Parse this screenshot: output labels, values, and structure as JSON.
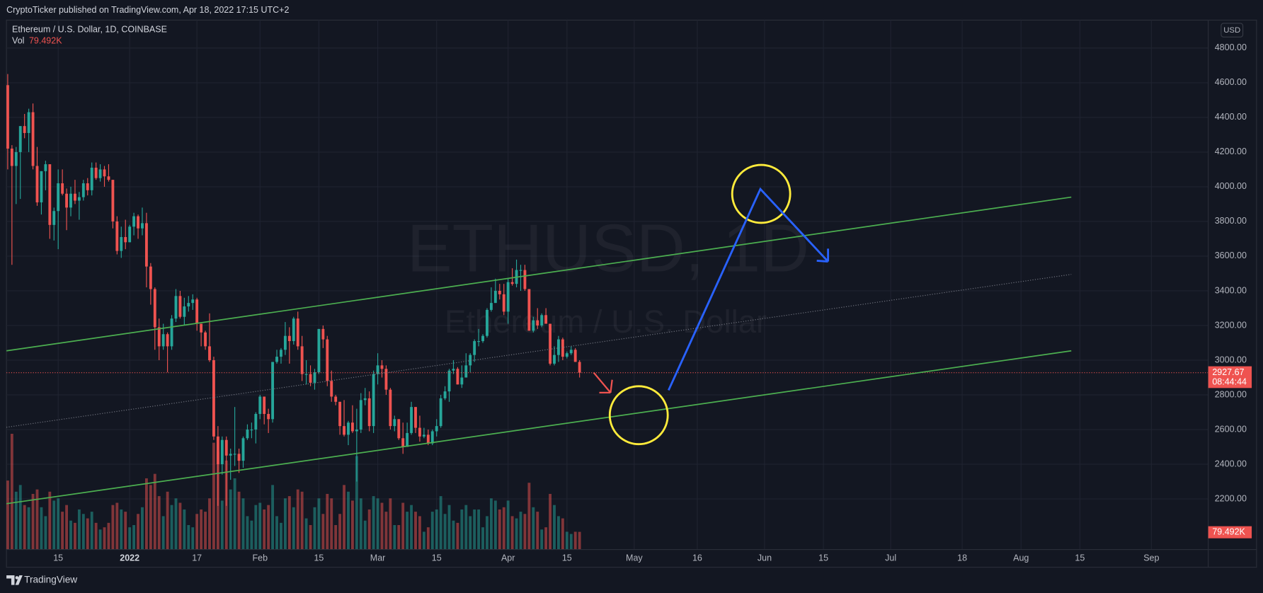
{
  "header": "CryptoTicker published on TradingView.com, Apr 18, 2022 17:15 UTC+2",
  "footer": "TradingView",
  "chart_data": {
    "type": "candlestick",
    "symbol": "Ethereum / U.S. Dollar, 1D, COINBASE",
    "watermark": "ETHUSD, 1D",
    "watermark_subtitle": "Ethereum / U.S. Dollar",
    "currency": "USD",
    "up_color": "#26a69a",
    "down_color": "#ef5350",
    "x": [
      "2021-12-03",
      "2021-12-04",
      "2021-12-05",
      "2021-12-06",
      "2021-12-07",
      "2021-12-08",
      "2021-12-09",
      "2021-12-10",
      "2021-12-11",
      "2021-12-12",
      "2021-12-13",
      "2021-12-14",
      "2021-12-15",
      "2021-12-16",
      "2021-12-17",
      "2021-12-18",
      "2021-12-19",
      "2021-12-20",
      "2021-12-21",
      "2021-12-22",
      "2021-12-23",
      "2021-12-24",
      "2021-12-25",
      "2021-12-26",
      "2021-12-27",
      "2021-12-28",
      "2021-12-29",
      "2021-12-30",
      "2021-12-31",
      "2022-01-01",
      "2022-01-02",
      "2022-01-03",
      "2022-01-04",
      "2022-01-05",
      "2022-01-06",
      "2022-01-07",
      "2022-01-08",
      "2022-01-09",
      "2022-01-10",
      "2022-01-11",
      "2022-01-12",
      "2022-01-13",
      "2022-01-14",
      "2022-01-15",
      "2022-01-16",
      "2022-01-17",
      "2022-01-18",
      "2022-01-19",
      "2022-01-20",
      "2022-01-21",
      "2022-01-22",
      "2022-01-23",
      "2022-01-24",
      "2022-01-25",
      "2022-01-26",
      "2022-01-27",
      "2022-01-28",
      "2022-01-29",
      "2022-01-30",
      "2022-01-31",
      "2022-02-01",
      "2022-02-02",
      "2022-02-03",
      "2022-02-04",
      "2022-02-05",
      "2022-02-06",
      "2022-02-07",
      "2022-02-08",
      "2022-02-09",
      "2022-02-10",
      "2022-02-11",
      "2022-02-12",
      "2022-02-13",
      "2022-02-14",
      "2022-02-15",
      "2022-02-16",
      "2022-02-17",
      "2022-02-18",
      "2022-02-19",
      "2022-02-20",
      "2022-02-21",
      "2022-02-22",
      "2022-02-23",
      "2022-02-24",
      "2022-02-25",
      "2022-02-26",
      "2022-02-27",
      "2022-02-28",
      "2022-03-01",
      "2022-03-02",
      "2022-03-03",
      "2022-03-04",
      "2022-03-05",
      "2022-03-06",
      "2022-03-07",
      "2022-03-08",
      "2022-03-09",
      "2022-03-10",
      "2022-03-11",
      "2022-03-12",
      "2022-03-13",
      "2022-03-14",
      "2022-03-15",
      "2022-03-16",
      "2022-03-17",
      "2022-03-18",
      "2022-03-19",
      "2022-03-20",
      "2022-03-21",
      "2022-03-22",
      "2022-03-23",
      "2022-03-24",
      "2022-03-25",
      "2022-03-26",
      "2022-03-27",
      "2022-03-28",
      "2022-03-29",
      "2022-03-30",
      "2022-03-31",
      "2022-04-01",
      "2022-04-02",
      "2022-04-03",
      "2022-04-04",
      "2022-04-05",
      "2022-04-06",
      "2022-04-07",
      "2022-04-08",
      "2022-04-09",
      "2022-04-10",
      "2022-04-11",
      "2022-04-12",
      "2022-04-13",
      "2022-04-14",
      "2022-04-15",
      "2022-04-16",
      "2022-04-17",
      "2022-04-18"
    ],
    "open": [
      4586,
      4220,
      4120,
      4200,
      4350,
      4310,
      4430,
      4120,
      3910,
      4090,
      4130,
      3780,
      3860,
      4020,
      3960,
      3880,
      3960,
      3920,
      3940,
      4020,
      3980,
      4110,
      4050,
      4100,
      4060,
      4040,
      3800,
      3630,
      3710,
      3680,
      3770,
      3830,
      3760,
      3790,
      3540,
      3410,
      3190,
      3080,
      3150,
      3080,
      3240,
      3370,
      3250,
      3310,
      3330,
      3350,
      3210,
      3160,
      3080,
      3000,
      2560,
      2400,
      2540,
      2450,
      2460,
      2460,
      2420,
      2550,
      2600,
      2600,
      2690,
      2790,
      2690,
      2660,
      2990,
      3020,
      3060,
      3140,
      3110,
      3240,
      3080,
      2920,
      2920,
      2870,
      2930,
      3180,
      3120,
      2880,
      2790,
      2760,
      2620,
      2570,
      2640,
      2590,
      2600,
      2770,
      2780,
      2620,
      2920,
      2970,
      2950,
      2830,
      2620,
      2660,
      2550,
      2500,
      2580,
      2730,
      2610,
      2560,
      2570,
      2520,
      2590,
      2620,
      2780,
      2820,
      2940,
      2950,
      2860,
      2900,
      2970,
      3030,
      3110,
      3110,
      3140,
      3290,
      3330,
      3400,
      3380,
      3280,
      3450,
      3440,
      3520,
      3520,
      3410,
      3170,
      3230,
      3200,
      3260,
      3210,
      2980,
      3030,
      3120,
      3020,
      3040,
      3060,
      2990
    ],
    "high": [
      4650,
      4240,
      4230,
      4350,
      4420,
      4450,
      4480,
      4230,
      4090,
      4150,
      4130,
      3880,
      4100,
      4100,
      3990,
      4000,
      4040,
      3970,
      4040,
      4050,
      4140,
      4140,
      4130,
      4120,
      4130,
      4040,
      3830,
      3770,
      3810,
      3780,
      3850,
      3840,
      3880,
      3850,
      3560,
      3420,
      3240,
      3210,
      3160,
      3260,
      3410,
      3400,
      3360,
      3370,
      3380,
      3360,
      3210,
      3170,
      3270,
      3020,
      2620,
      2560,
      2560,
      2490,
      2730,
      2490,
      2560,
      2630,
      2640,
      2700,
      2800,
      2790,
      2720,
      2990,
      3060,
      3070,
      3220,
      3190,
      3250,
      3280,
      3140,
      3000,
      2970,
      2950,
      3180,
      3200,
      3140,
      2940,
      2800,
      2760,
      2770,
      2650,
      2740,
      2720,
      2810,
      2840,
      2820,
      2940,
      3040,
      3000,
      2970,
      2840,
      2680,
      2660,
      2640,
      2640,
      2760,
      2730,
      2680,
      2610,
      2600,
      2600,
      2660,
      2800,
      2850,
      2950,
      3000,
      2960,
      2970,
      3040,
      3040,
      3120,
      3180,
      3150,
      3300,
      3420,
      3470,
      3440,
      3440,
      3470,
      3530,
      3580,
      3550,
      3550,
      3410,
      3250,
      3300,
      3270,
      3300,
      3210,
      3080,
      3140,
      3130,
      3050,
      3080,
      3070,
      3000
    ],
    "low": [
      4100,
      3550,
      3900,
      3930,
      4280,
      4200,
      4100,
      3890,
      3840,
      3980,
      3700,
      3690,
      3640,
      3950,
      3750,
      3830,
      3900,
      3810,
      3920,
      3950,
      3950,
      4040,
      4030,
      4000,
      4030,
      3760,
      3610,
      3590,
      3640,
      3680,
      3720,
      3700,
      3720,
      3420,
      3320,
      3060,
      3000,
      3060,
      2930,
      3060,
      3220,
      3240,
      3200,
      3280,
      3290,
      3170,
      3080,
      3060,
      2990,
      2540,
      2160,
      2340,
      2160,
      2310,
      2390,
      2350,
      2380,
      2540,
      2550,
      2520,
      2660,
      2630,
      2580,
      2640,
      2980,
      2980,
      3030,
      2980,
      3090,
      3060,
      2880,
      2860,
      2850,
      2830,
      2920,
      3070,
      2850,
      2760,
      2740,
      2570,
      2560,
      2510,
      2580,
      2300,
      2580,
      2740,
      2590,
      2580,
      2860,
      2900,
      2800,
      2600,
      2590,
      2540,
      2460,
      2500,
      2570,
      2580,
      2530,
      2550,
      2510,
      2510,
      2560,
      2610,
      2770,
      2760,
      2920,
      2860,
      2840,
      2900,
      2930,
      2990,
      3080,
      3100,
      3130,
      3280,
      3330,
      3350,
      3260,
      3210,
      3430,
      3420,
      3400,
      3400,
      3170,
      3160,
      3180,
      3190,
      3220,
      2970,
      2970,
      2990,
      3000,
      3010,
      3030,
      2990,
      2900
    ],
    "close": [
      4220,
      4120,
      4200,
      4350,
      4310,
      4430,
      4120,
      3910,
      4090,
      4130,
      3780,
      3860,
      4020,
      3960,
      3880,
      3960,
      3920,
      3940,
      4020,
      3980,
      4110,
      4050,
      4100,
      4060,
      4040,
      3800,
      3630,
      3710,
      3680,
      3770,
      3830,
      3760,
      3790,
      3540,
      3410,
      3190,
      3080,
      3150,
      3080,
      3240,
      3370,
      3250,
      3310,
      3330,
      3350,
      3210,
      3160,
      3080,
      3000,
      2560,
      2400,
      2540,
      2450,
      2460,
      2460,
      2420,
      2550,
      2600,
      2600,
      2690,
      2790,
      2690,
      2660,
      2990,
      3020,
      3060,
      3140,
      3110,
      3240,
      3080,
      2920,
      2920,
      2870,
      2930,
      3180,
      3120,
      2880,
      2790,
      2760,
      2620,
      2570,
      2640,
      2590,
      2600,
      2770,
      2780,
      2620,
      2920,
      2970,
      2950,
      2830,
      2620,
      2660,
      2550,
      2500,
      2580,
      2730,
      2610,
      2560,
      2570,
      2520,
      2590,
      2620,
      2780,
      2820,
      2940,
      2950,
      2860,
      2900,
      2970,
      3030,
      3110,
      3110,
      3140,
      3290,
      3330,
      3400,
      3380,
      3280,
      3450,
      3440,
      3520,
      3520,
      3410,
      3170,
      3230,
      3200,
      3260,
      3210,
      2980,
      3030,
      3120,
      3020,
      3040,
      3060,
      2990,
      2927.67
    ],
    "volume": {
      "name": "Vol",
      "values": [
        310000,
        520000,
        260000,
        290000,
        200000,
        190000,
        250000,
        270000,
        190000,
        150000,
        260000,
        220000,
        230000,
        170000,
        200000,
        130000,
        120000,
        180000,
        160000,
        140000,
        170000,
        120000,
        90000,
        100000,
        120000,
        200000,
        210000,
        180000,
        170000,
        100000,
        110000,
        160000,
        190000,
        320000,
        290000,
        340000,
        240000,
        150000,
        260000,
        200000,
        230000,
        210000,
        180000,
        110000,
        100000,
        160000,
        180000,
        170000,
        230000,
        480000,
        440000,
        220000,
        400000,
        270000,
        320000,
        260000,
        230000,
        150000,
        130000,
        200000,
        210000,
        180000,
        200000,
        290000,
        150000,
        120000,
        230000,
        240000,
        190000,
        270000,
        260000,
        140000,
        110000,
        190000,
        230000,
        160000,
        250000,
        230000,
        110000,
        160000,
        290000,
        260000,
        220000,
        420000,
        230000,
        130000,
        180000,
        240000,
        230000,
        210000,
        170000,
        230000,
        110000,
        110000,
        210000,
        170000,
        200000,
        170000,
        150000,
        80000,
        100000,
        170000,
        180000,
        240000,
        160000,
        200000,
        130000,
        120000,
        180000,
        200000,
        150000,
        180000,
        180000,
        100000,
        150000,
        230000,
        220000,
        180000,
        190000,
        220000,
        150000,
        140000,
        170000,
        160000,
        300000,
        190000,
        170000,
        90000,
        100000,
        250000,
        200000,
        150000,
        140000,
        80000,
        70000,
        80000,
        79492
      ],
      "ylim": [
        0,
        600000
      ],
      "last_label": {
        "value": 79492,
        "label": "79.492K"
      }
    },
    "last_price": 2927.67,
    "countdown": "08:44:44",
    "xlim": [
      "2021-12-03",
      "2022-09-14"
    ],
    "ylim": [
      1908,
      4961
    ],
    "xticks": [
      {
        "value": "2021-12-15",
        "label": "15"
      },
      {
        "value": "2022-01-01",
        "label": "2022"
      },
      {
        "value": "2022-01-17",
        "label": "17"
      },
      {
        "value": "2022-02-01",
        "label": "Feb"
      },
      {
        "value": "2022-02-15",
        "label": "15"
      },
      {
        "value": "2022-03-01",
        "label": "Mar"
      },
      {
        "value": "2022-03-15",
        "label": "15"
      },
      {
        "value": "2022-04-01",
        "label": "Apr"
      },
      {
        "value": "2022-04-15",
        "label": "15"
      },
      {
        "value": "2022-05-01",
        "label": "May"
      },
      {
        "value": "2022-05-16",
        "label": "16"
      },
      {
        "value": "2022-06-01",
        "label": "Jun"
      },
      {
        "value": "2022-06-15",
        "label": "15"
      },
      {
        "value": "2022-07-01",
        "label": "Jul"
      },
      {
        "value": "2022-07-18",
        "label": "18"
      },
      {
        "value": "2022-08-01",
        "label": "Aug"
      },
      {
        "value": "2022-08-15",
        "label": "15"
      },
      {
        "value": "2022-09-01",
        "label": "Sep"
      }
    ],
    "yticks": [
      {
        "value": 2200,
        "label": "2200.00"
      },
      {
        "value": 2400,
        "label": "2400.00"
      },
      {
        "value": 2600,
        "label": "2600.00"
      },
      {
        "value": 2800,
        "label": "2800.00"
      },
      {
        "value": 3000,
        "label": "3000.00"
      },
      {
        "value": 3200,
        "label": "3200.00"
      },
      {
        "value": 3400,
        "label": "3400.00"
      },
      {
        "value": 3600,
        "label": "3600.00"
      },
      {
        "value": 3800,
        "label": "3800.00"
      },
      {
        "value": 4000,
        "label": "4000.00"
      },
      {
        "value": 4200,
        "label": "4200.00"
      },
      {
        "value": 4400,
        "label": "4400.00"
      },
      {
        "value": 4600,
        "label": "4600.00"
      },
      {
        "value": 4800,
        "label": "4800.00"
      }
    ],
    "grid": true
  }
}
